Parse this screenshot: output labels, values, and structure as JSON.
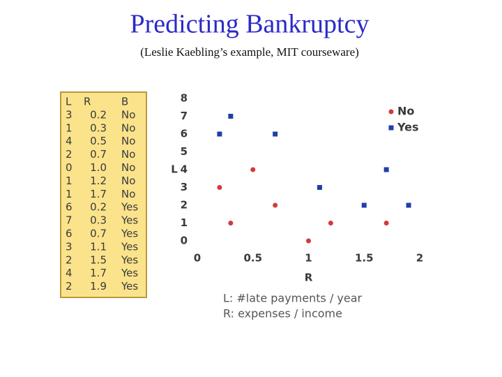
{
  "slide": {
    "title": "Predicting Bankruptcy",
    "subtitle": "(Leslie Kaebling’s example, MIT courseware)"
  },
  "table": {
    "header": [
      "L",
      "R",
      "B"
    ],
    "rows": [
      [
        "3",
        "0.2",
        "No"
      ],
      [
        "1",
        "0.3",
        "No"
      ],
      [
        "4",
        "0.5",
        "No"
      ],
      [
        "2",
        "0.7",
        "No"
      ],
      [
        "0",
        "1.0",
        "No"
      ],
      [
        "1",
        "1.2",
        "No"
      ],
      [
        "1",
        "1.7",
        "No"
      ],
      [
        "6",
        "0.2",
        "Yes"
      ],
      [
        "7",
        "0.3",
        "Yes"
      ],
      [
        "6",
        "0.7",
        "Yes"
      ],
      [
        "3",
        "1.1",
        "Yes"
      ],
      [
        "2",
        "1.5",
        "Yes"
      ],
      [
        "4",
        "1.7",
        "Yes"
      ],
      [
        "2",
        "1.9",
        "Yes"
      ]
    ]
  },
  "chart_data": {
    "type": "scatter",
    "x_label": "R",
    "y_label": "L",
    "series": [
      {
        "name": "No",
        "color": "#d23a3a",
        "x": [
          0.2,
          0.3,
          0.5,
          0.7,
          1.0,
          1.2,
          1.7
        ],
        "values": [
          3,
          1,
          4,
          2,
          0,
          1,
          1
        ]
      },
      {
        "name": "Yes",
        "color": "#1f3fa8",
        "x": [
          0.2,
          0.3,
          0.7,
          1.1,
          1.5,
          1.7,
          1.9
        ],
        "values": [
          6,
          7,
          6,
          3,
          2,
          4,
          2
        ]
      }
    ],
    "xlim": [
      0,
      2
    ],
    "xticks": [
      0,
      0.5,
      1,
      1.5,
      2
    ],
    "ylim": [
      0,
      8
    ],
    "yticks": [
      0,
      1,
      2,
      3,
      4,
      5,
      6,
      7,
      8
    ],
    "grid": false,
    "legend": "upper right",
    "annotations": [
      "L: #late payments / year",
      "R: expenses / income"
    ]
  }
}
